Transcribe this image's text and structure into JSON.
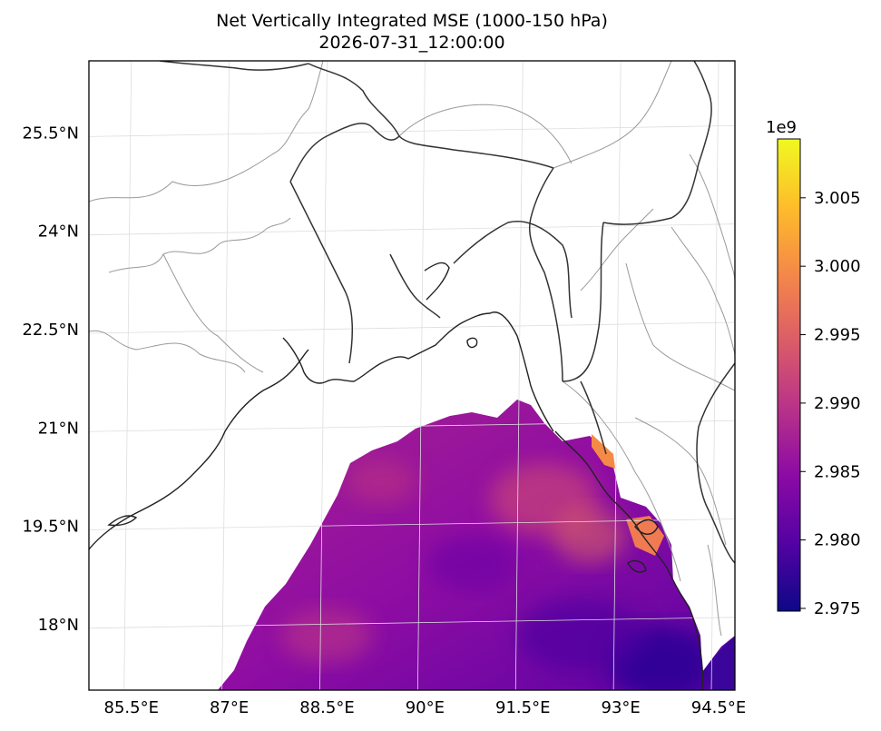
{
  "chart_data": {
    "type": "heatmap",
    "title": "Net Vertically Integrated MSE (1000-150 hPa)",
    "subtitle": "2026-07-31_12:00:00",
    "x_ticks": [
      "85.5°E",
      "87°E",
      "88.5°E",
      "90°E",
      "91.5°E",
      "93°E",
      "94.5°E"
    ],
    "y_ticks": [
      "25.5°N",
      "24°N",
      "22.5°N",
      "21°N",
      "19.5°N",
      "18°N"
    ],
    "x_tick_values": [
      85.5,
      87,
      88.5,
      90,
      91.5,
      93,
      94.5
    ],
    "y_tick_values": [
      25.5,
      24,
      22.5,
      21,
      19.5,
      18
    ],
    "xlim": [
      84.85,
      94.75
    ],
    "ylim": [
      17.0,
      26.6
    ],
    "grid": true,
    "colormap": "plasma",
    "colorbar": {
      "label_exponent": "1e9",
      "ticks": [
        "3.005",
        "3.000",
        "2.995",
        "2.990",
        "2.985",
        "2.980",
        "2.975"
      ],
      "tick_values": [
        3.005,
        3.0,
        2.995,
        2.99,
        2.985,
        2.98,
        2.975
      ],
      "range": [
        2.9748,
        3.0093
      ],
      "colors": [
        "#0d0887",
        "#5302a3",
        "#8b0aa5",
        "#b83289",
        "#db5c68",
        "#f48849",
        "#febd2a",
        "#f0f921"
      ]
    },
    "field_summary": "Values only over the Bay of Bengal; highest (~3.000-3.005e9) along the Myanmar/Bangladesh coast near 93°E, 20-19.5°N; lowest (~2.975-2.978e9) in the southeast near 94.5°E, 17.5°N; mostly 2.984-2.992e9 elsewhere"
  }
}
